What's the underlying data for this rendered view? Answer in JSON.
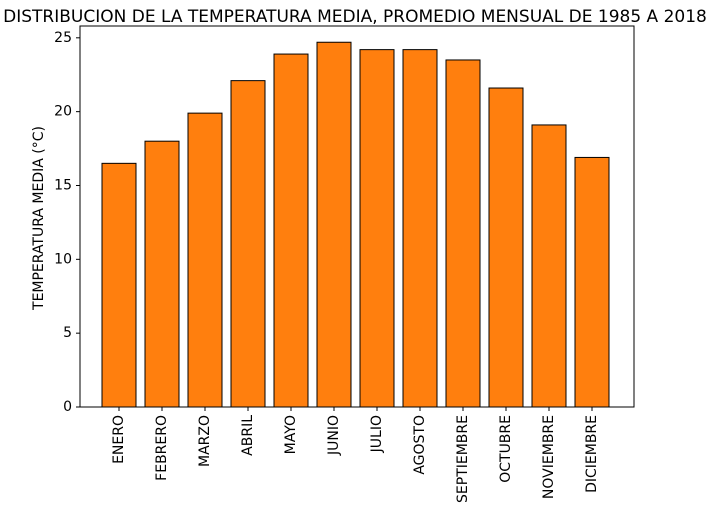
{
  "chart_data": {
    "type": "bar",
    "title": "DISTRIBUCION DE LA TEMPERATURA MEDIA, PROMEDIO MENSUAL DE 1985 A 2018",
    "xlabel": "",
    "ylabel": "TEMPERATURA MEDIA (°C)",
    "categories": [
      "ENERO",
      "FEBRERO",
      "MARZO",
      "ABRIL",
      "MAYO",
      "JUNIO",
      "JULIO",
      "AGOSTO",
      "SEPTIEMBRE",
      "OCTUBRE",
      "NOVIEMBRE",
      "DICIEMBRE"
    ],
    "values": [
      16.5,
      18.0,
      19.9,
      22.1,
      23.9,
      24.7,
      24.2,
      24.2,
      23.5,
      21.6,
      19.1,
      16.9
    ],
    "ylim": [
      0,
      25.8
    ],
    "yticks": [
      0,
      5,
      10,
      15,
      20,
      25
    ],
    "bar_color": "#ff7f0e",
    "edge_color": "#000000",
    "grid": false,
    "legend": "none"
  }
}
